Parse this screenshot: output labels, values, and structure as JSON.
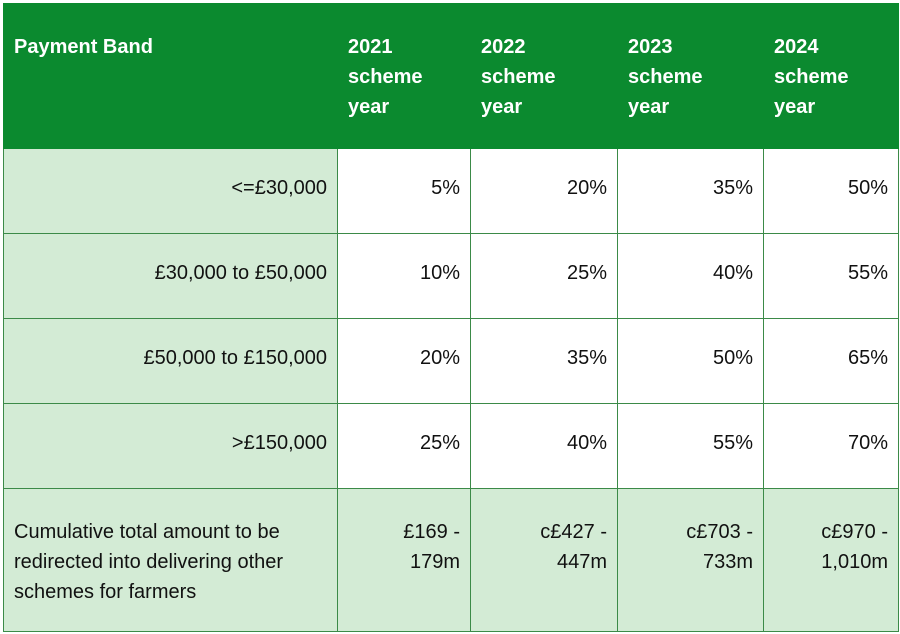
{
  "header": {
    "band_label": "Payment Band",
    "years": [
      [
        "2021",
        "scheme",
        "year"
      ],
      [
        "2022",
        "scheme",
        "year"
      ],
      [
        "2023",
        "scheme",
        "year"
      ],
      [
        "2024",
        "scheme",
        "year"
      ]
    ]
  },
  "rows": [
    {
      "band": "<=£30,000",
      "values": [
        "5%",
        "20%",
        "35%",
        "50%"
      ]
    },
    {
      "band": "£30,000 to £50,000",
      "values": [
        "10%",
        "25%",
        "40%",
        "55%"
      ]
    },
    {
      "band": "£50,000 to £150,000",
      "values": [
        "20%",
        "35%",
        "50%",
        "65%"
      ]
    },
    {
      "band": ">£150,000",
      "values": [
        "25%",
        "40%",
        "55%",
        "70%"
      ]
    }
  ],
  "total": {
    "label": [
      "Cumulative total amount to be",
      "redirected into delivering other",
      "schemes for farmers"
    ],
    "values": [
      [
        "£169 -",
        "179m"
      ],
      [
        "c£427 -",
        "447m"
      ],
      [
        "c£703 -",
        "733m"
      ],
      [
        "c£970 -",
        "1,010m"
      ]
    ]
  },
  "colors": {
    "header_bg": "#0b8a2f",
    "band_bg": "#d3ebd5",
    "border": "#3b8a48"
  }
}
